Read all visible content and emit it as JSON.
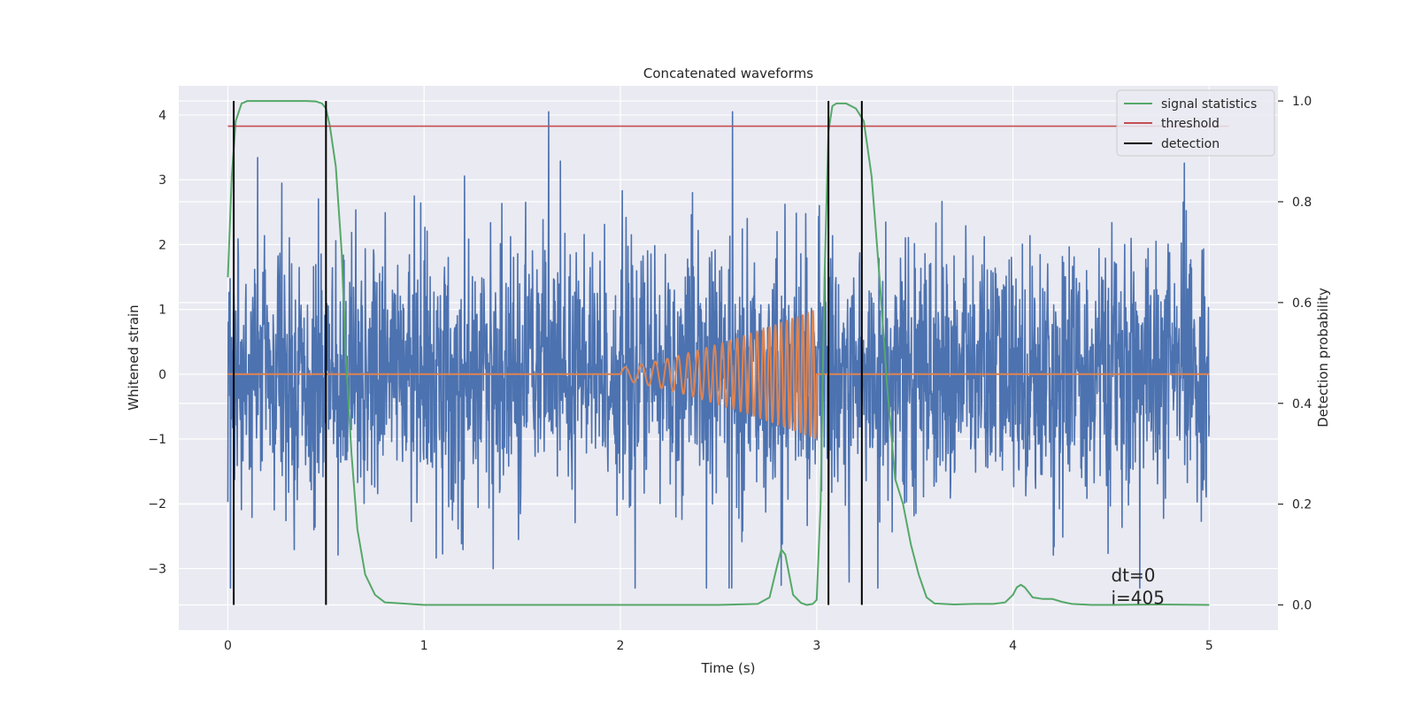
{
  "chart_data": {
    "type": "line",
    "title": "Concatenated waveforms",
    "xlabel": "Time (s)",
    "ylabel": "Whitened strain",
    "y2label": "Detection probability",
    "xlim": [
      -0.25,
      5.35
    ],
    "ylim": [
      -3.95,
      4.45
    ],
    "y2lim": [
      -0.05,
      1.03
    ],
    "xticks": [
      0,
      1,
      2,
      3,
      4,
      5
    ],
    "yticks": [
      -3,
      -2,
      -1,
      0,
      1,
      2,
      3,
      4
    ],
    "y2ticks": [
      0.0,
      0.2,
      0.4,
      0.6,
      0.8,
      1.0
    ],
    "y2tick_labels": [
      "0.0",
      "0.2",
      "0.4",
      "0.6",
      "0.8",
      "1.0"
    ],
    "grid": true,
    "legend_position": "top-right",
    "colors": {
      "background": "#eaeaf2",
      "grid": "#ffffff",
      "noise": "#4c72b0",
      "injected_signal": "#dd8452",
      "signal_statistics": "#55a868",
      "threshold": "#c44e52",
      "detection": "#000000"
    },
    "series": [
      {
        "key": "noise",
        "axis": "left",
        "description_range": "whitened noise spanning roughly -3.2 to 4.0 over t = 0 to 5 s",
        "x_range": [
          0,
          5
        ]
      },
      {
        "key": "injected_signal",
        "axis": "left",
        "chirp": {
          "t_start": 2.0,
          "t_end": 3.0,
          "amp_start": 0.1,
          "amp_end": 1.0,
          "freq_start": 10,
          "freq_end": 40
        }
      },
      {
        "key": "signal_statistics",
        "name": "signal statistics",
        "axis": "right",
        "x": [
          0.0,
          0.02,
          0.04,
          0.07,
          0.1,
          0.15,
          0.2,
          0.3,
          0.4,
          0.45,
          0.48,
          0.5,
          0.52,
          0.55,
          0.58,
          0.6,
          0.63,
          0.66,
          0.7,
          0.75,
          0.8,
          1.0,
          1.5,
          2.0,
          2.5,
          2.7,
          2.76,
          2.8,
          2.82,
          2.84,
          2.86,
          2.88,
          2.92,
          2.95,
          2.98,
          3.0,
          3.02,
          3.04,
          3.06,
          3.08,
          3.1,
          3.15,
          3.2,
          3.24,
          3.28,
          3.32,
          3.36,
          3.4,
          3.44,
          3.48,
          3.52,
          3.56,
          3.6,
          3.7,
          3.8,
          3.9,
          3.96,
          4.0,
          4.02,
          4.04,
          4.06,
          4.08,
          4.1,
          4.15,
          4.2,
          4.25,
          4.3,
          4.4,
          4.5,
          4.75,
          5.0
        ],
        "y": [
          0.65,
          0.85,
          0.96,
          0.995,
          1.0,
          1.0,
          1.0,
          1.0,
          1.0,
          0.999,
          0.995,
          0.985,
          0.95,
          0.87,
          0.7,
          0.5,
          0.3,
          0.15,
          0.06,
          0.02,
          0.005,
          0.0,
          0.0,
          0.0,
          0.0,
          0.002,
          0.015,
          0.08,
          0.11,
          0.1,
          0.06,
          0.02,
          0.004,
          0.0,
          0.002,
          0.01,
          0.2,
          0.65,
          0.94,
          0.99,
          0.995,
          0.995,
          0.985,
          0.96,
          0.85,
          0.65,
          0.43,
          0.25,
          0.2,
          0.12,
          0.06,
          0.015,
          0.003,
          0.001,
          0.002,
          0.002,
          0.005,
          0.02,
          0.035,
          0.04,
          0.035,
          0.025,
          0.015,
          0.012,
          0.012,
          0.006,
          0.002,
          0.0,
          0.0,
          0.001,
          0.0
        ]
      },
      {
        "key": "threshold",
        "name": "threshold",
        "axis": "right",
        "y": 0.95,
        "x_range": [
          0,
          5.1
        ]
      },
      {
        "key": "detection",
        "name": "detection",
        "axis": "right",
        "x": [
          0.03,
          0.5,
          3.06,
          3.23
        ],
        "y_range": [
          0,
          1.0
        ]
      }
    ],
    "annotations": [
      {
        "text": "dt=0",
        "x": 4.5,
        "y": -3.2,
        "axis": "left"
      },
      {
        "text": "i=405",
        "x": 4.5,
        "y": -3.55,
        "axis": "left"
      }
    ]
  }
}
